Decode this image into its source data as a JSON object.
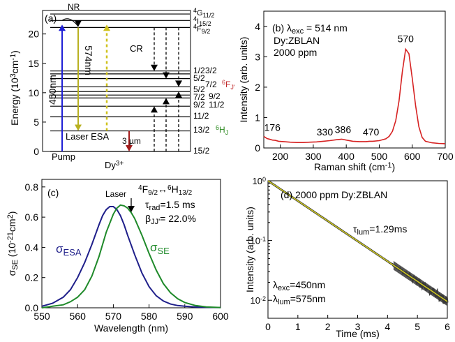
{
  "chart_data": [
    {
      "panel": "(a)",
      "type": "diagram",
      "ylabel_main": "Energy (10",
      "ylabel_sup": "3",
      "ylabel_tail": "cm",
      "ylabel_sup2": "-1",
      "ylabel_end": ")",
      "ylim": [
        0,
        24
      ],
      "yticks": [
        0,
        5,
        10,
        15,
        20
      ],
      "ion_label": "Dy",
      "ion_sup": "3+",
      "levels": [
        {
          "e": 0.0,
          "color": "#000000"
        },
        {
          "e": 3.5,
          "color": "#000000"
        },
        {
          "e": 5.9,
          "color": "#000000"
        },
        {
          "e": 7.7,
          "color": "#000000"
        },
        {
          "e": 9.1,
          "color": "#000000"
        },
        {
          "e": 9.6,
          "color": "#000000"
        },
        {
          "e": 10.2,
          "color": "#000000"
        },
        {
          "e": 11.0,
          "color": "#000000"
        },
        {
          "e": 12.4,
          "color": "#000000"
        },
        {
          "e": 13.2,
          "color": "#000000"
        },
        {
          "e": 13.7,
          "color": "#000000"
        },
        {
          "e": 21.1,
          "color": "#000000"
        },
        {
          "e": 22.3,
          "color": "#000000"
        },
        {
          "e": 23.4,
          "color": "#000000"
        }
      ],
      "level_labels": [
        {
          "text": "15/2",
          "e": 0.0,
          "color": "#2e8b22"
        },
        {
          "text": "13/2",
          "e": 3.5,
          "color": "#2e8b22"
        },
        {
          "text": "11/2",
          "e": 5.9,
          "color": "#2e8b22"
        },
        {
          "text": "9/2",
          "e": 7.7,
          "color": "#2e8b22"
        },
        {
          "text": "11/2",
          "e": 7.7,
          "color": "#c0292b"
        },
        {
          "text": "7/2",
          "e": 9.3,
          "color": "#2e8b22"
        },
        {
          "text": "9/2",
          "e": 9.3,
          "color": "#c0292b"
        },
        {
          "text": "5/2",
          "e": 10.5,
          "color": "#2e8b22"
        },
        {
          "text": "7/2",
          "e": 11.3,
          "color": "#c0292b"
        },
        {
          "text": "5/2",
          "e": 12.6,
          "color": "#c0292b"
        },
        {
          "text": "3/2",
          "e": 13.7,
          "color": "#c0292b"
        },
        {
          "text": "1/2",
          "e": 13.7,
          "color": "#c0292b"
        }
      ],
      "multiplet_6HJ": {
        "main": "H",
        "pre": "6",
        "sub": "J",
        "color": "#2e8b22"
      },
      "multiplet_6FJ": {
        "main": "F",
        "pre": "6",
        "sub": "J'",
        "color": "#c0292b"
      },
      "top_labels": [
        {
          "pre": "4",
          "main": "G",
          "sub": "11/2"
        },
        {
          "pre": "4",
          "main": "I",
          "sub": "15/2"
        },
        {
          "pre": "4",
          "main": "F",
          "sub": "9/2"
        }
      ],
      "annotations": {
        "nr": "NR",
        "cr": "CR",
        "pump_wl": "450nm",
        "laser_wl": "574nm",
        "mid_ir": "3 µm",
        "laser_esa": "Laser ESA",
        "pump": "Pump"
      },
      "colors": {
        "pump": "#1f1fd6",
        "laser": "#b8b020",
        "esa": "#cfc21e",
        "midir": "#a31c1c"
      }
    },
    {
      "panel": "(b)",
      "type": "line",
      "xlabel": "Raman shift (cm",
      "xlabel_sup": "-1",
      "xlabel_end": ")",
      "ylabel": "Intensity (arb. units)",
      "xlim": [
        150,
        700
      ],
      "ylim": [
        0,
        4.5
      ],
      "xticks": [
        200,
        300,
        400,
        500,
        600,
        700
      ],
      "yticks": [
        0,
        1,
        2,
        3,
        4
      ],
      "text_lines": [
        "(b) λ",
        "exc",
        " = 514 nm",
        "Dy:ZBLAN",
        "2000 ppm"
      ],
      "peaks": [
        {
          "label": "176",
          "x": 176,
          "y": 0.42
        },
        {
          "label": "330",
          "x": 335,
          "y": 0.28
        },
        {
          "label": "386",
          "x": 390,
          "y": 0.36
        },
        {
          "label": "470",
          "x": 475,
          "y": 0.28
        },
        {
          "label": "570",
          "x": 580,
          "y": 3.34
        }
      ],
      "color": "#d62222",
      "x": [
        150,
        160,
        170,
        176,
        185,
        195,
        210,
        230,
        250,
        270,
        290,
        310,
        330,
        350,
        370,
        386,
        400,
        420,
        440,
        460,
        470,
        480,
        500,
        520,
        530,
        540,
        550,
        560,
        570,
        580,
        590,
        600,
        610,
        620,
        630,
        640,
        660,
        680,
        700
      ],
      "y": [
        0.38,
        0.31,
        0.28,
        0.26,
        0.25,
        0.22,
        0.21,
        0.19,
        0.18,
        0.18,
        0.19,
        0.2,
        0.22,
        0.24,
        0.27,
        0.29,
        0.26,
        0.22,
        0.21,
        0.21,
        0.22,
        0.22,
        0.24,
        0.3,
        0.38,
        0.55,
        0.9,
        1.55,
        2.5,
        3.25,
        3.1,
        2.3,
        1.4,
        0.7,
        0.35,
        0.22,
        0.17,
        0.15,
        0.14
      ]
    },
    {
      "panel": "(c)",
      "type": "line",
      "xlabel": "Wavelength (nm)",
      "ylabel_main": "σ",
      "ylabel_sub": "SE",
      "ylabel_tail": " (10",
      "ylabel_sup": "-21",
      "ylabel_tail2": "cm",
      "ylabel_sup2": "2",
      "ylabel_end": ")",
      "xlim": [
        550,
        600
      ],
      "ylim": [
        0,
        0.85
      ],
      "xticks": [
        550,
        560,
        570,
        580,
        590,
        600
      ],
      "yticks": [
        0.0,
        0.2,
        0.4,
        0.6,
        0.8
      ],
      "panel_label": "(c)",
      "laser_label": "Laser",
      "transition": {
        "pre1": "4",
        "main1": "F",
        "sub1": "9/2",
        "arrow": "↔",
        "pre2": "6",
        "main2": "H",
        "sub2": "13/2"
      },
      "tau_text": {
        "main": "τ",
        "sub": "rad",
        "tail": "=1.5 ms"
      },
      "beta_text": {
        "main": "β",
        "sub": "JJ'",
        "tail": "= 22.0%"
      },
      "series": [
        {
          "name_main": "σ",
          "name_sub": "ESA",
          "color": "#1f1f8a",
          "x": [
            550,
            553,
            556,
            558,
            560,
            562,
            564,
            566,
            567,
            568,
            569,
            570,
            571,
            572,
            573,
            574,
            576,
            578,
            580,
            582,
            584,
            586,
            588,
            590,
            593,
            596,
            600
          ],
          "y": [
            0.01,
            0.03,
            0.07,
            0.12,
            0.2,
            0.3,
            0.42,
            0.55,
            0.61,
            0.65,
            0.67,
            0.67,
            0.65,
            0.61,
            0.55,
            0.48,
            0.35,
            0.23,
            0.14,
            0.08,
            0.045,
            0.025,
            0.015,
            0.01,
            0.005,
            0.003,
            0.002
          ]
        },
        {
          "name_main": "σ",
          "name_sub": "SE",
          "color": "#1f8a2a",
          "x": [
            550,
            553,
            556,
            558,
            560,
            562,
            564,
            566,
            568,
            570,
            571,
            572,
            573,
            574,
            575,
            576,
            578,
            580,
            582,
            584,
            586,
            588,
            590,
            593,
            596,
            600
          ],
          "y": [
            0.0,
            0.01,
            0.02,
            0.04,
            0.07,
            0.12,
            0.21,
            0.34,
            0.5,
            0.62,
            0.66,
            0.68,
            0.675,
            0.66,
            0.63,
            0.59,
            0.48,
            0.36,
            0.25,
            0.16,
            0.1,
            0.06,
            0.035,
            0.015,
            0.006,
            0.002
          ]
        }
      ]
    },
    {
      "panel": "(d)",
      "type": "line",
      "xlabel": "Time (ms)",
      "ylabel": "Intensity (arb. units)",
      "xlim": [
        0,
        6
      ],
      "ylim_log": [
        0.005,
        1.0
      ],
      "xticks": [
        0,
        1,
        2,
        3,
        4,
        5,
        6
      ],
      "yticks_log": [
        {
          "v": 1.0,
          "base": "10",
          "exp": "0"
        },
        {
          "v": 0.1,
          "base": "10",
          "exp": "-1"
        },
        {
          "v": 0.01,
          "base": "10",
          "exp": "-2"
        }
      ],
      "title": "(d) 2000 ppm Dy:ZBLAN",
      "tau_text": {
        "main": "τ",
        "sub": "lum",
        "tail": "=1.29ms"
      },
      "exc_text": {
        "main": "λ",
        "sub": "exc",
        "tail": "=450nm"
      },
      "lum_text": {
        "main": "λ",
        "sub": "lum",
        "tail": "=575nm"
      },
      "tau_ms": 1.29,
      "data_color": "#3a3a3a",
      "fit_color": "#d8d21c",
      "decay_start": 1.0,
      "decay_end": 6.0
    }
  ]
}
